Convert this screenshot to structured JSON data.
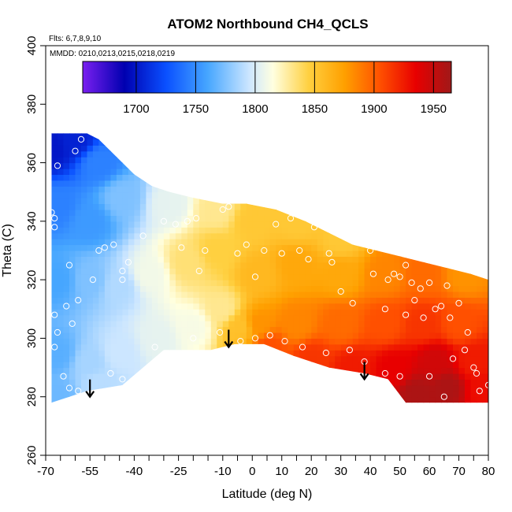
{
  "chart_data": {
    "type": "heatmap",
    "title": "ATOM2 Northbound CH4_QCLS",
    "note_flights": "Flts: 6,7,8,9,10",
    "note_dates": "MMDD: 0210,0213,0215,0218,0219",
    "xlabel": "Latitude (deg N)",
    "ylabel": "Theta (C)",
    "xlim": [
      -70,
      80
    ],
    "ylim": [
      260,
      400
    ],
    "x_ticks": [
      -70,
      -55,
      -40,
      -25,
      -10,
      0,
      10,
      20,
      30,
      40,
      50,
      60,
      70,
      80
    ],
    "x_ticks_minor": [
      -65,
      -60,
      -50,
      -45,
      -35,
      -30,
      -20,
      -15,
      -5,
      5,
      15,
      25,
      35,
      45,
      55,
      65,
      75
    ],
    "y_ticks": [
      260,
      280,
      300,
      320,
      340,
      360,
      380,
      400
    ],
    "colorbar": {
      "range": [
        1655,
        1965
      ],
      "ticks": [
        1700,
        1750,
        1800,
        1850,
        1900,
        1950
      ],
      "colors": [
        "#7a1ff0",
        "#0000b0",
        "#0a50ff",
        "#46a6ff",
        "#cce6ff",
        "#ffffe0",
        "#ffd040",
        "#ffa000",
        "#ff5000",
        "#e80000",
        "#a01818"
      ],
      "stops": [
        1655,
        1690,
        1725,
        1760,
        1795,
        1815,
        1845,
        1875,
        1905,
        1935,
        1965
      ]
    },
    "upper_boundary": [
      [
        -68,
        370
      ],
      [
        -56,
        370
      ],
      [
        -52,
        368
      ],
      [
        -46,
        362
      ],
      [
        -40,
        356
      ],
      [
        -34,
        352
      ],
      [
        -28,
        350
      ],
      [
        -20,
        348
      ],
      [
        -10,
        346
      ],
      [
        -2,
        346
      ],
      [
        8,
        344
      ],
      [
        18,
        340
      ],
      [
        26,
        336
      ],
      [
        34,
        332
      ],
      [
        42,
        330
      ],
      [
        50,
        328
      ],
      [
        58,
        326
      ],
      [
        66,
        324
      ],
      [
        74,
        322
      ],
      [
        80,
        320
      ],
      [
        80,
        278
      ]
    ],
    "lower_boundary": [
      [
        80,
        278
      ],
      [
        52,
        278
      ],
      [
        46,
        286
      ],
      [
        38,
        288
      ],
      [
        26,
        290
      ],
      [
        14,
        294
      ],
      [
        4,
        298
      ],
      [
        -6,
        298
      ],
      [
        -14,
        296
      ],
      [
        -30,
        296
      ],
      [
        -44,
        284
      ],
      [
        -56,
        282
      ],
      [
        -62,
        280
      ],
      [
        -68,
        278
      ]
    ],
    "field": [
      {
        "lat": -68,
        "theta": 365,
        "ch4": 1700
      },
      {
        "lat": -60,
        "theta": 368,
        "ch4": 1705
      },
      {
        "lat": -52,
        "theta": 360,
        "ch4": 1745
      },
      {
        "lat": -66,
        "theta": 345,
        "ch4": 1745
      },
      {
        "lat": -55,
        "theta": 340,
        "ch4": 1755
      },
      {
        "lat": -44,
        "theta": 348,
        "ch4": 1775
      },
      {
        "lat": -28,
        "theta": 346,
        "ch4": 1805
      },
      {
        "lat": -12,
        "theta": 344,
        "ch4": 1830
      },
      {
        "lat": -66,
        "theta": 320,
        "ch4": 1760
      },
      {
        "lat": -55,
        "theta": 320,
        "ch4": 1775
      },
      {
        "lat": -45,
        "theta": 318,
        "ch4": 1788
      },
      {
        "lat": -35,
        "theta": 322,
        "ch4": 1810
      },
      {
        "lat": -22,
        "theta": 326,
        "ch4": 1835
      },
      {
        "lat": -66,
        "theta": 295,
        "ch4": 1765
      },
      {
        "lat": -55,
        "theta": 292,
        "ch4": 1785
      },
      {
        "lat": -45,
        "theta": 295,
        "ch4": 1795
      },
      {
        "lat": -32,
        "theta": 300,
        "ch4": 1805
      },
      {
        "lat": -20,
        "theta": 304,
        "ch4": 1812
      },
      {
        "lat": -10,
        "theta": 310,
        "ch4": 1830
      },
      {
        "lat": -4,
        "theta": 304,
        "ch4": 1855
      },
      {
        "lat": -66,
        "theta": 280,
        "ch4": 1770
      },
      {
        "lat": -52,
        "theta": 284,
        "ch4": 1790
      },
      {
        "lat": -12,
        "theta": 330,
        "ch4": 1845
      },
      {
        "lat": 0,
        "theta": 340,
        "ch4": 1850
      },
      {
        "lat": 15,
        "theta": 340,
        "ch4": 1850
      },
      {
        "lat": 30,
        "theta": 334,
        "ch4": 1850
      },
      {
        "lat": 2,
        "theta": 322,
        "ch4": 1860
      },
      {
        "lat": 15,
        "theta": 325,
        "ch4": 1870
      },
      {
        "lat": 30,
        "theta": 322,
        "ch4": 1870
      },
      {
        "lat": 45,
        "theta": 322,
        "ch4": 1885
      },
      {
        "lat": 58,
        "theta": 322,
        "ch4": 1895
      },
      {
        "lat": 72,
        "theta": 322,
        "ch4": 1880
      },
      {
        "lat": 2,
        "theta": 305,
        "ch4": 1880
      },
      {
        "lat": 15,
        "theta": 305,
        "ch4": 1885
      },
      {
        "lat": 30,
        "theta": 305,
        "ch4": 1895
      },
      {
        "lat": 45,
        "theta": 305,
        "ch4": 1905
      },
      {
        "lat": 58,
        "theta": 305,
        "ch4": 1915
      },
      {
        "lat": 70,
        "theta": 305,
        "ch4": 1905
      },
      {
        "lat": 6,
        "theta": 297,
        "ch4": 1905
      },
      {
        "lat": 20,
        "theta": 293,
        "ch4": 1915
      },
      {
        "lat": 34,
        "theta": 290,
        "ch4": 1925
      },
      {
        "lat": 48,
        "theta": 290,
        "ch4": 1935
      },
      {
        "lat": 62,
        "theta": 292,
        "ch4": 1945
      },
      {
        "lat": 75,
        "theta": 292,
        "ch4": 1925
      },
      {
        "lat": 56,
        "theta": 281,
        "ch4": 1960
      },
      {
        "lat": 66,
        "theta": 283,
        "ch4": 1960
      },
      {
        "lat": 78,
        "theta": 282,
        "ch4": 1930
      }
    ],
    "obs_points": [
      [
        -67,
        341
      ],
      [
        -68,
        343
      ],
      [
        -67,
        338
      ],
      [
        -66,
        359
      ],
      [
        -60,
        364
      ],
      [
        -58,
        368
      ],
      [
        -62,
        325
      ],
      [
        -63,
        311
      ],
      [
        -61,
        305
      ],
      [
        -59,
        313
      ],
      [
        -67,
        308
      ],
      [
        -66,
        302
      ],
      [
        -67,
        297
      ],
      [
        -64,
        287
      ],
      [
        -62,
        283
      ],
      [
        -59,
        282
      ],
      [
        -54,
        320
      ],
      [
        -52,
        330
      ],
      [
        -50,
        331
      ],
      [
        -47,
        332
      ],
      [
        -44,
        323
      ],
      [
        -44,
        320
      ],
      [
        -42,
        326
      ],
      [
        -37,
        335
      ],
      [
        -30,
        340
      ],
      [
        -26,
        339
      ],
      [
        -24,
        331
      ],
      [
        -22,
        340
      ],
      [
        -19,
        341
      ],
      [
        -18,
        323
      ],
      [
        -16,
        330
      ],
      [
        -10,
        344
      ],
      [
        -8,
        345
      ],
      [
        -5,
        329
      ],
      [
        -2,
        332
      ],
      [
        1,
        321
      ],
      [
        4,
        330
      ],
      [
        8,
        339
      ],
      [
        10,
        329
      ],
      [
        13,
        341
      ],
      [
        16,
        330
      ],
      [
        19,
        327
      ],
      [
        21,
        338
      ],
      [
        24,
        344
      ],
      [
        26,
        329
      ],
      [
        27,
        326
      ],
      [
        30,
        316
      ],
      [
        34,
        312
      ],
      [
        36,
        336
      ],
      [
        40,
        330
      ],
      [
        41,
        322
      ],
      [
        46,
        320
      ],
      [
        48,
        322
      ],
      [
        50,
        321
      ],
      [
        52,
        325
      ],
      [
        54,
        319
      ],
      [
        57,
        317
      ],
      [
        58,
        307
      ],
      [
        62,
        310
      ],
      [
        64,
        311
      ],
      [
        66,
        318
      ],
      [
        67,
        307
      ],
      [
        70,
        312
      ],
      [
        72,
        296
      ],
      [
        73,
        302
      ],
      [
        75,
        290
      ],
      [
        76,
        288
      ],
      [
        77,
        282
      ],
      [
        80,
        284
      ],
      [
        38,
        292
      ],
      [
        33,
        296
      ],
      [
        25,
        295
      ],
      [
        17,
        297
      ],
      [
        11,
        299
      ],
      [
        6,
        301
      ],
      [
        1,
        300
      ],
      [
        -4,
        299
      ],
      [
        -11,
        302
      ],
      [
        -20,
        300
      ],
      [
        -33,
        297
      ],
      [
        -44,
        286
      ],
      [
        -48,
        288
      ],
      [
        2,
        296
      ],
      [
        45,
        288
      ],
      [
        50,
        287
      ],
      [
        60,
        287
      ],
      [
        65,
        280
      ],
      [
        68,
        293
      ],
      [
        45,
        310
      ],
      [
        52,
        308
      ],
      [
        55,
        313
      ],
      [
        60,
        319
      ]
    ],
    "arrows": [
      {
        "lat": -55,
        "theta": 280
      },
      {
        "lat": -8,
        "theta": 297
      },
      {
        "lat": 38,
        "theta": 286
      }
    ]
  }
}
